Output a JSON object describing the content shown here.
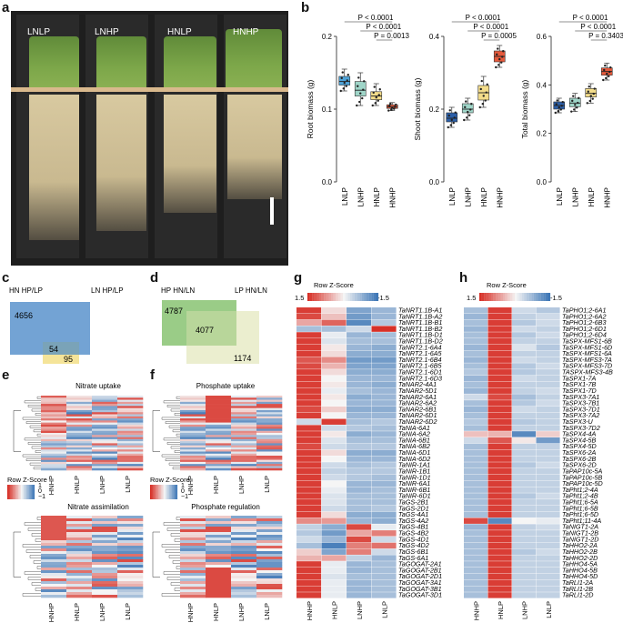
{
  "panels": {
    "a": "a",
    "b": "b",
    "c": "c",
    "d": "d",
    "e": "e",
    "f": "f",
    "g": "g",
    "h": "h"
  },
  "photo": {
    "conditions": [
      "LNLP",
      "LNHP",
      "HNLP",
      "HNHP"
    ]
  },
  "boxplots": [
    {
      "ylabel": "Root biomass (g)",
      "ylim": [
        0.0,
        0.2
      ],
      "ticks": [
        "0.0",
        "0.1",
        "0.2"
      ],
      "tick_values": [
        0.0,
        0.1,
        0.2
      ],
      "pvals": [
        "P < 0.0001",
        "P < 0.0001",
        "P = 0.0013"
      ],
      "categories": [
        "LNLP",
        "LNHP",
        "HNLP",
        "HNHP"
      ],
      "colors": [
        "#4ea3d8",
        "#9fd5c8",
        "#f3dc8a",
        "#e65a3c"
      ],
      "medians": [
        0.138,
        0.126,
        0.118,
        0.103
      ],
      "q1": [
        0.133,
        0.118,
        0.113,
        0.101
      ],
      "q3": [
        0.145,
        0.138,
        0.124,
        0.106
      ],
      "lo": [
        0.125,
        0.105,
        0.105,
        0.098
      ],
      "hi": [
        0.155,
        0.15,
        0.135,
        0.109
      ]
    },
    {
      "ylabel": "Shoot biomass (g)",
      "ylim": [
        0.0,
        0.4
      ],
      "ticks": [
        "0.0",
        "0.2",
        "0.4"
      ],
      "tick_values": [
        0.0,
        0.2,
        0.4
      ],
      "pvals": [
        "P < 0.0001",
        "P < 0.0001",
        "P = 0.0005"
      ],
      "categories": [
        "LNLP",
        "LNHP",
        "HNLP",
        "HNHP"
      ],
      "colors": [
        "#2c5fa8",
        "#9fd5c8",
        "#f3dc8a",
        "#e65a3c"
      ],
      "medians": [
        0.175,
        0.2,
        0.245,
        0.345
      ],
      "q1": [
        0.165,
        0.19,
        0.225,
        0.33
      ],
      "q3": [
        0.19,
        0.215,
        0.265,
        0.36
      ],
      "lo": [
        0.15,
        0.17,
        0.205,
        0.315
      ],
      "hi": [
        0.205,
        0.23,
        0.29,
        0.375
      ]
    },
    {
      "ylabel": "Total biomass (g)",
      "ylim": [
        0.0,
        0.6
      ],
      "ticks": [
        "0.0",
        "0.2",
        "0.4",
        "0.6"
      ],
      "tick_values": [
        0.0,
        0.2,
        0.4,
        0.6
      ],
      "pvals": [
        "P < 0.0001",
        "P < 0.0001",
        "P = 0.3403"
      ],
      "categories": [
        "LNLP",
        "LNHP",
        "HNLP",
        "HNHP"
      ],
      "colors": [
        "#2c5fa8",
        "#9fd5c8",
        "#f3dc8a",
        "#e65a3c"
      ],
      "medians": [
        0.315,
        0.325,
        0.365,
        0.455
      ],
      "q1": [
        0.3,
        0.31,
        0.35,
        0.44
      ],
      "q3": [
        0.33,
        0.345,
        0.385,
        0.47
      ],
      "lo": [
        0.285,
        0.29,
        0.325,
        0.42
      ],
      "hi": [
        0.345,
        0.365,
        0.405,
        0.49
      ]
    }
  ],
  "venn_c": {
    "left": "HN  HP/LP",
    "right": "LN  HP/LP",
    "a": "4656",
    "ab": "54",
    "b": "95"
  },
  "venn_d": {
    "left": "HP HN/LN",
    "right": "LP  HN/LN",
    "a": "4787",
    "ab": "4077",
    "b": "1174"
  },
  "heat_e": {
    "title1": "Nitrate uptake",
    "title2": "Nitrate assimilation",
    "legend_title": "Row Z-Score",
    "legend_ticks": [
      "1",
      "0",
      "−1"
    ],
    "cols": [
      "HNHP",
      "HNLP",
      "LNHP",
      "LNLP"
    ]
  },
  "heat_f": {
    "title1": "Phosphate uptake",
    "title2": "Phosphate regulation",
    "legend_title": "Row Z-Score",
    "legend_ticks": [
      "1",
      "0",
      "−1"
    ],
    "cols": [
      "HNHP",
      "HNLP",
      "LNHP",
      "LNLP"
    ]
  },
  "heat_g": {
    "legend_title": "Row Z-Score",
    "legend_min": "1.5",
    "legend_max": "-1.5",
    "cols": [
      "HNHP",
      "HNLP",
      "LNHP",
      "LNLP"
    ],
    "genes": [
      "TaNRT1.1B-A1",
      "TaNRT1.1B-A2",
      "TaNRT1.1B-B1",
      "TaNRT1.1B-B2",
      "TaNRT1.1B-D1",
      "TaNRT1.1B-D2",
      "TaNRT2.1-6A4",
      "TaNRT2.1-6A5",
      "TaNRT2.1-6B4",
      "TaNRT2.1-6B5",
      "TaNRT2.1-6D1",
      "TaNRT2.1-6D3",
      "TaNAR2-4A1",
      "TaNAR2-5D1",
      "TaNAR2-6A1",
      "TaNAR2-6A2",
      "TaNAR2-6B1",
      "TaNAR2-6D1",
      "TaNAR2-6D2",
      "TaNIA-6A1",
      "TaNIA-6A2",
      "TaNIA-6B1",
      "TaNIA-6B2",
      "TaNIA-6D1",
      "TaNIA-6D2",
      "TaNIR-1A1",
      "TaNIR-1B1",
      "TaNIR-1D1",
      "TaNIR-6A1",
      "TaNIR-6B1",
      "TaNIR-6D1",
      "TaGS-2B1",
      "TaGS-2D1",
      "TaGS-4A1",
      "TaGS-4A2",
      "TaGS-4B1",
      "TaGS-4B2",
      "TaGS-4D1",
      "TaGS-4D2",
      "TaGS-6B1",
      "TaGS-6A1",
      "TaGOGAT-2A1",
      "TaGOGAT-2B1",
      "TaGOGAT-2D1",
      "TaGOGAT-3A1",
      "TaGOGAT-3B1",
      "TaGOGAT-3D1"
    ],
    "z": [
      [
        1.4,
        0.2,
        -0.9,
        -0.7
      ],
      [
        1.3,
        0.4,
        -1.0,
        -0.7
      ],
      [
        0.6,
        1.1,
        -1.2,
        -0.5
      ],
      [
        -0.6,
        -0.6,
        -0.3,
        1.5
      ],
      [
        1.4,
        -0.1,
        -0.7,
        -0.6
      ],
      [
        1.4,
        -0.2,
        -0.6,
        -0.6
      ],
      [
        1.4,
        0.1,
        -0.7,
        -0.8
      ],
      [
        1.4,
        0.2,
        -0.8,
        -0.8
      ],
      [
        1.2,
        0.8,
        -1.0,
        -1.0
      ],
      [
        1.3,
        0.5,
        -0.9,
        -0.9
      ],
      [
        1.4,
        0.2,
        -0.8,
        -0.8
      ],
      [
        1.4,
        0.0,
        -0.7,
        -0.7
      ],
      [
        1.4,
        0.1,
        -0.7,
        -0.8
      ],
      [
        1.4,
        -0.1,
        -0.6,
        -0.7
      ],
      [
        1.4,
        0.1,
        -0.8,
        -0.7
      ],
      [
        1.4,
        0.0,
        -0.7,
        -0.7
      ],
      [
        1.3,
        0.3,
        -0.8,
        -0.8
      ],
      [
        1.4,
        0.0,
        -0.7,
        -0.7
      ],
      [
        -0.3,
        1.4,
        -0.6,
        -0.5
      ],
      [
        1.4,
        -0.3,
        -0.5,
        -0.6
      ],
      [
        1.4,
        0.1,
        -0.8,
        -0.7
      ],
      [
        1.4,
        -0.2,
        -0.6,
        -0.6
      ],
      [
        1.3,
        -0.3,
        -0.5,
        -0.5
      ],
      [
        1.4,
        0.2,
        -0.8,
        -0.8
      ],
      [
        1.4,
        0.0,
        -0.7,
        -0.7
      ],
      [
        1.4,
        -0.3,
        -0.6,
        -0.5
      ],
      [
        1.4,
        -0.4,
        -0.5,
        -0.5
      ],
      [
        1.4,
        -0.3,
        -0.5,
        -0.6
      ],
      [
        1.4,
        0.0,
        -0.7,
        -0.7
      ],
      [
        1.4,
        -0.1,
        -0.7,
        -0.6
      ],
      [
        1.4,
        -0.2,
        -0.6,
        -0.6
      ],
      [
        1.4,
        -0.2,
        -0.6,
        -0.6
      ],
      [
        1.4,
        -0.3,
        -0.6,
        -0.5
      ],
      [
        1.4,
        0.2,
        -0.8,
        -0.8
      ],
      [
        0.8,
        0.7,
        -0.7,
        -0.8
      ],
      [
        -0.4,
        -0.8,
        1.3,
        -0.1
      ],
      [
        -0.5,
        -1.0,
        0.6,
        0.9
      ],
      [
        -0.3,
        -0.7,
        1.3,
        -0.3
      ],
      [
        -0.6,
        -1.3,
        0.9,
        1.0
      ],
      [
        0.3,
        -0.9,
        0.9,
        -0.3
      ],
      [
        0.5,
        0.6,
        -0.4,
        -0.7
      ],
      [
        1.4,
        -0.1,
        -0.7,
        -0.6
      ],
      [
        1.4,
        -0.1,
        -0.7,
        -0.6
      ],
      [
        1.4,
        -0.2,
        -0.6,
        -0.6
      ],
      [
        1.4,
        -0.1,
        -0.7,
        -0.6
      ],
      [
        1.4,
        -0.1,
        -0.7,
        -0.6
      ],
      [
        1.4,
        -0.1,
        -0.7,
        -0.6
      ]
    ]
  },
  "heat_h": {
    "legend_title": "Row Z-Score",
    "legend_min": "1.5",
    "legend_max": "-1.5",
    "cols": [
      "HNHP",
      "HNLP",
      "LNHP",
      "LNLP"
    ],
    "genes": [
      "TaPHO1;2-6A1",
      "TaPHO1;2-6A2",
      "TaPHO1;2-6B3",
      "TaPHO1;2-6D1",
      "TaPHO1;2-6D4",
      "TaSPX-MFS1-6B",
      "TaSPX-MFS1-6D",
      "TaSPX-MFS1-6A",
      "TaSPX-MFS3-7A",
      "TaSPX-MFS3-7D",
      "TASPX-MFS3-4B",
      "TaSPX1-7A",
      "TaSPX1-7B",
      "TaSPX1-7D",
      "TaSPX3-7A1",
      "TaSPX3-7B1",
      "TaSPX3-7D1",
      "TaSPX3-7A2",
      "TaSPX3-U",
      "TaSPX3-7D2",
      "TaSPX4-4A",
      "TaSPX4-5B",
      "TaSPX4-5D",
      "TaSPX6-2A",
      "TaSPX6-2B",
      "TaSPX6-2D",
      "TaPAP10c-5A",
      "TaPAP10c-5B",
      "TaPAP10c-5D",
      "TaPht1;2-4A",
      "TaPht1;2-4B",
      "TaPht1;6-5A",
      "TaPht1;6-5B",
      "TaPht1;6-5D",
      "TaPht1;11-4A",
      "TaNIGT1-2A",
      "TaNIGT1-2B",
      "TaNIGT1-2D",
      "TaHHO2-2A",
      "TaHHO2-2B",
      "TaHHO2-2D",
      "TaHHO4-5A",
      "TaHHO4-5B",
      "TaHHO4-5D",
      "TaRLI1-2A",
      "TaRLI1-2B",
      "TaRLI1-2D"
    ],
    "z": [
      [
        -0.6,
        1.4,
        -0.3,
        -0.5
      ],
      [
        -0.7,
        1.4,
        -0.4,
        -0.3
      ],
      [
        -0.6,
        1.4,
        -0.5,
        -0.3
      ],
      [
        -0.7,
        1.4,
        -0.3,
        -0.4
      ],
      [
        -0.6,
        1.4,
        -0.5,
        -0.3
      ],
      [
        -0.6,
        1.4,
        -0.4,
        -0.4
      ],
      [
        -0.7,
        1.4,
        -0.2,
        -0.5
      ],
      [
        -0.6,
        1.4,
        -0.4,
        -0.4
      ],
      [
        -0.7,
        1.4,
        -0.3,
        -0.4
      ],
      [
        -0.6,
        1.4,
        -0.5,
        -0.3
      ],
      [
        -0.5,
        1.4,
        -0.5,
        -0.4
      ],
      [
        -0.7,
        1.4,
        -0.3,
        -0.4
      ],
      [
        -0.6,
        1.4,
        -0.4,
        -0.4
      ],
      [
        -0.7,
        1.4,
        -0.4,
        -0.3
      ],
      [
        -0.3,
        1.3,
        -0.6,
        -0.4
      ],
      [
        -0.6,
        1.4,
        -0.5,
        -0.3
      ],
      [
        -0.7,
        1.4,
        -0.3,
        -0.4
      ],
      [
        -0.6,
        1.4,
        -0.4,
        -0.4
      ],
      [
        -0.5,
        1.4,
        -0.5,
        -0.4
      ],
      [
        -0.6,
        1.4,
        -0.4,
        -0.4
      ],
      [
        0.4,
        0.5,
        -1.2,
        0.3
      ],
      [
        -0.3,
        1.2,
        0.1,
        -1.0
      ],
      [
        -0.6,
        1.4,
        -0.4,
        -0.4
      ],
      [
        -0.6,
        1.4,
        -0.4,
        -0.4
      ],
      [
        -0.6,
        1.4,
        -0.4,
        -0.4
      ],
      [
        -0.6,
        1.4,
        -0.5,
        -0.3
      ],
      [
        -0.6,
        1.4,
        -0.4,
        -0.4
      ],
      [
        -0.6,
        1.4,
        -0.4,
        -0.4
      ],
      [
        -0.6,
        1.4,
        -0.4,
        -0.4
      ],
      [
        -0.6,
        1.4,
        -0.4,
        -0.4
      ],
      [
        -0.6,
        1.4,
        -0.5,
        -0.3
      ],
      [
        -0.6,
        1.4,
        -0.4,
        -0.4
      ],
      [
        -0.6,
        1.4,
        -0.4,
        -0.4
      ],
      [
        -0.6,
        1.4,
        -0.4,
        -0.4
      ],
      [
        1.3,
        -1.2,
        0.0,
        -0.1
      ],
      [
        -0.7,
        1.4,
        -0.4,
        -0.3
      ],
      [
        -0.6,
        1.4,
        -0.4,
        -0.4
      ],
      [
        -0.6,
        1.4,
        -0.4,
        -0.4
      ],
      [
        -0.6,
        1.4,
        -0.4,
        -0.4
      ],
      [
        -0.6,
        1.4,
        -0.5,
        -0.3
      ],
      [
        -0.6,
        1.4,
        -0.4,
        -0.4
      ],
      [
        -0.6,
        1.4,
        -0.4,
        -0.4
      ],
      [
        -0.6,
        1.4,
        -0.4,
        -0.4
      ],
      [
        -0.6,
        1.4,
        -0.4,
        -0.4
      ],
      [
        -0.6,
        1.4,
        -0.4,
        -0.4
      ],
      [
        -0.6,
        1.4,
        -0.4,
        -0.4
      ],
      [
        -0.6,
        1.4,
        -0.4,
        -0.4
      ]
    ]
  }
}
